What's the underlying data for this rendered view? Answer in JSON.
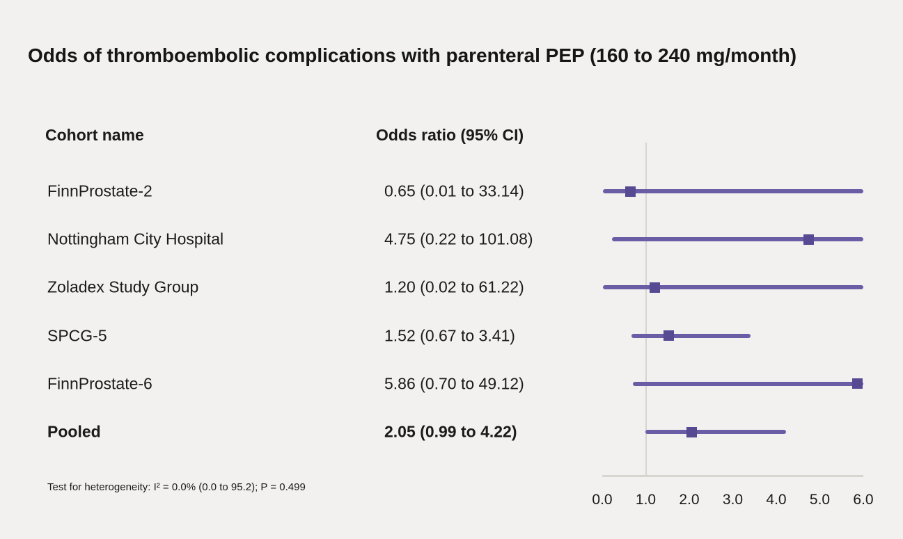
{
  "colors": {
    "background": "#f2f1ef",
    "line": "#6a5ca5",
    "marker": "#564a92",
    "axis": "#d8d5d1",
    "text": "#1a1a1a"
  },
  "chart_data": {
    "type": "forest",
    "title": "Odds of thromboembolic complications with parenteral PEP (160 to 240 mg/month)",
    "columns": {
      "cohort": "Cohort name",
      "odds": "Odds ratio (95% CI)"
    },
    "axis": {
      "min": 0,
      "max": 6,
      "ticks": [
        "0.0",
        "1.0",
        "2.0",
        "3.0",
        "4.0",
        "5.0",
        "6.0"
      ],
      "tick_values": [
        0,
        1,
        2,
        3,
        4,
        5,
        6
      ],
      "reference_line": 1.0
    },
    "rows": [
      {
        "cohort": "FinnProstate-2",
        "label": "0.65 (0.01 to 33.14)",
        "or": 0.65,
        "ci_low": 0.01,
        "ci_high": 33.14,
        "pooled": false
      },
      {
        "cohort": "Nottingham City Hospital",
        "label": "4.75 (0.22 to 101.08)",
        "or": 4.75,
        "ci_low": 0.22,
        "ci_high": 101.08,
        "pooled": false
      },
      {
        "cohort": "Zoladex Study Group",
        "label": "1.20 (0.02 to 61.22)",
        "or": 1.2,
        "ci_low": 0.02,
        "ci_high": 61.22,
        "pooled": false
      },
      {
        "cohort": "SPCG-5",
        "label": "1.52 (0.67 to 3.41)",
        "or": 1.52,
        "ci_low": 0.67,
        "ci_high": 3.41,
        "pooled": false
      },
      {
        "cohort": "FinnProstate-6",
        "label": "5.86 (0.70 to 49.12)",
        "or": 5.86,
        "ci_low": 0.7,
        "ci_high": 49.12,
        "pooled": false
      },
      {
        "cohort": "Pooled",
        "label": "2.05 (0.99 to 4.22)",
        "or": 2.05,
        "ci_low": 0.99,
        "ci_high": 4.22,
        "pooled": true
      }
    ],
    "footnote": "Test for heterogeneity: I² = 0.0% (0.0 to 95.2); P = 0.499"
  }
}
